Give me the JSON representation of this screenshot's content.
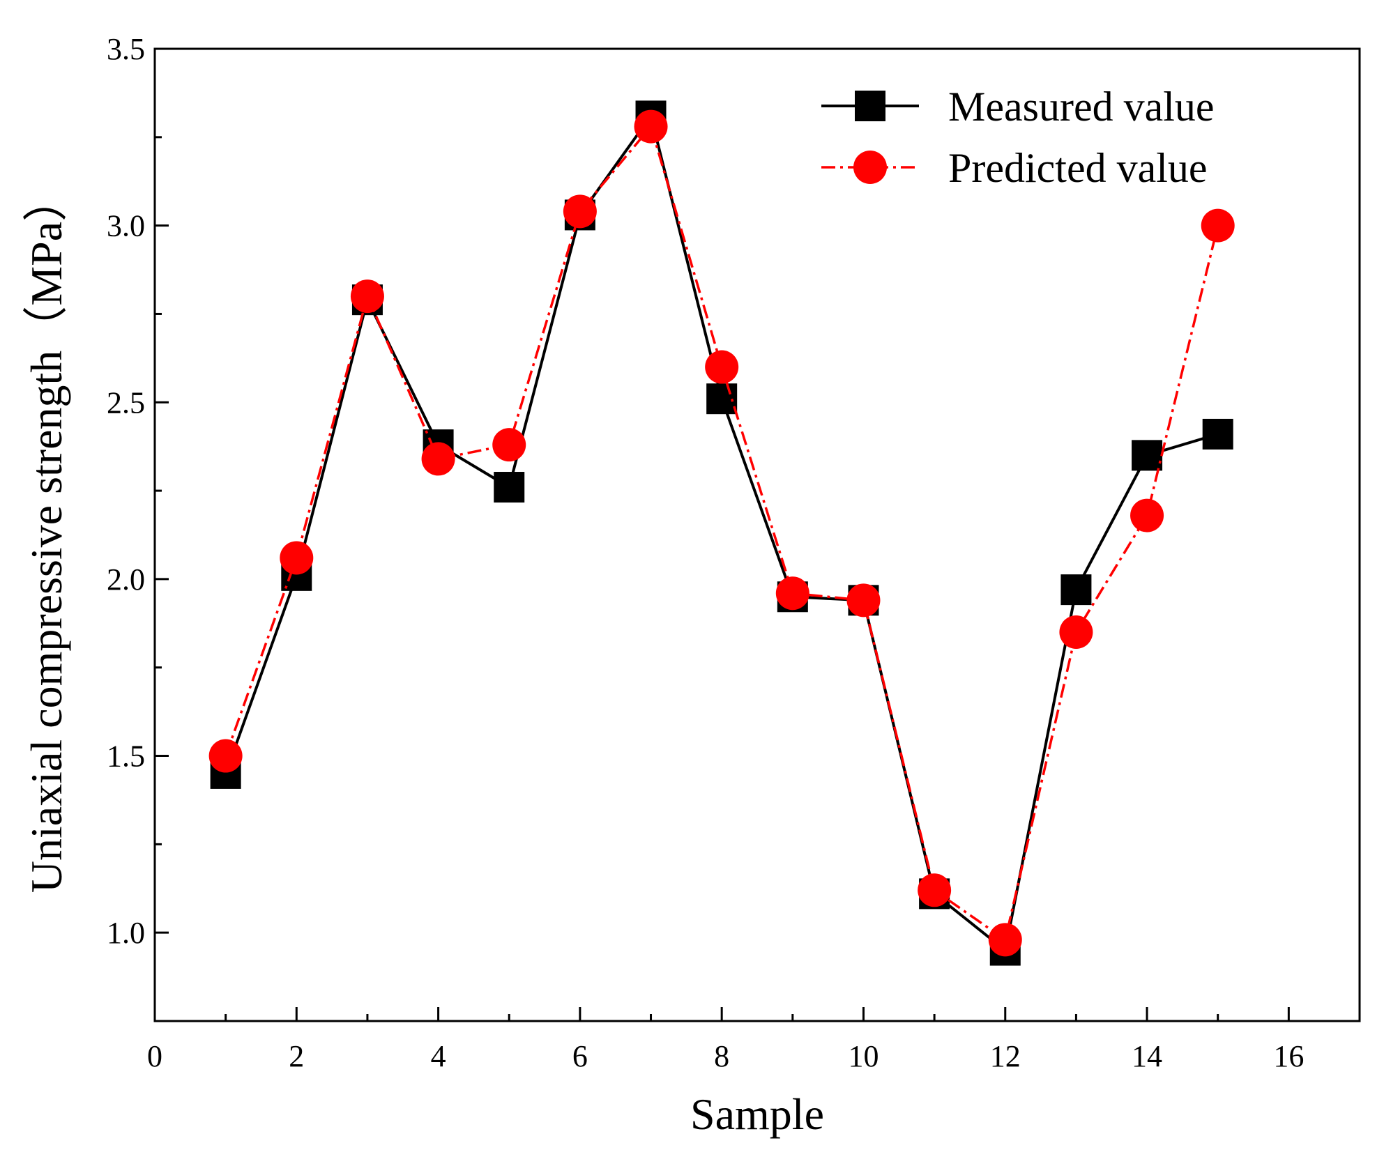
{
  "chart_data": {
    "type": "line",
    "title": "",
    "xlabel": "Sample",
    "ylabel": "Uniaxial compressive strength（MPa）",
    "xlim": [
      0,
      17
    ],
    "ylim": [
      0.75,
      3.5
    ],
    "xticks": [
      0,
      2,
      4,
      6,
      8,
      10,
      12,
      14,
      16
    ],
    "xtick_labels": [
      "0",
      "2",
      "4",
      "6",
      "8",
      "10",
      "12",
      "14",
      "16"
    ],
    "yticks": [
      1.0,
      1.5,
      2.0,
      2.5,
      3.0,
      3.5
    ],
    "ytick_labels": [
      "1.0",
      "1.5",
      "2.0",
      "2.5",
      "3.0",
      "3.5"
    ],
    "grid": false,
    "legend_position": "top-right",
    "x": [
      1,
      2,
      3,
      4,
      5,
      6,
      7,
      8,
      9,
      10,
      11,
      12,
      13,
      14,
      15
    ],
    "series": [
      {
        "name": "Measured value",
        "color": "#000000",
        "marker": "square",
        "line_style": "solid",
        "values": [
          1.45,
          2.01,
          2.79,
          2.38,
          2.26,
          3.03,
          3.31,
          2.51,
          1.95,
          1.94,
          1.11,
          0.95,
          1.97,
          2.35,
          2.41
        ]
      },
      {
        "name": "Predicted value",
        "color": "#ff0000",
        "marker": "circle",
        "line_style": "dash-dot",
        "values": [
          1.5,
          2.06,
          2.8,
          2.34,
          2.38,
          3.04,
          3.28,
          2.6,
          1.96,
          1.94,
          1.12,
          0.98,
          1.85,
          2.18,
          3.0
        ]
      }
    ]
  }
}
